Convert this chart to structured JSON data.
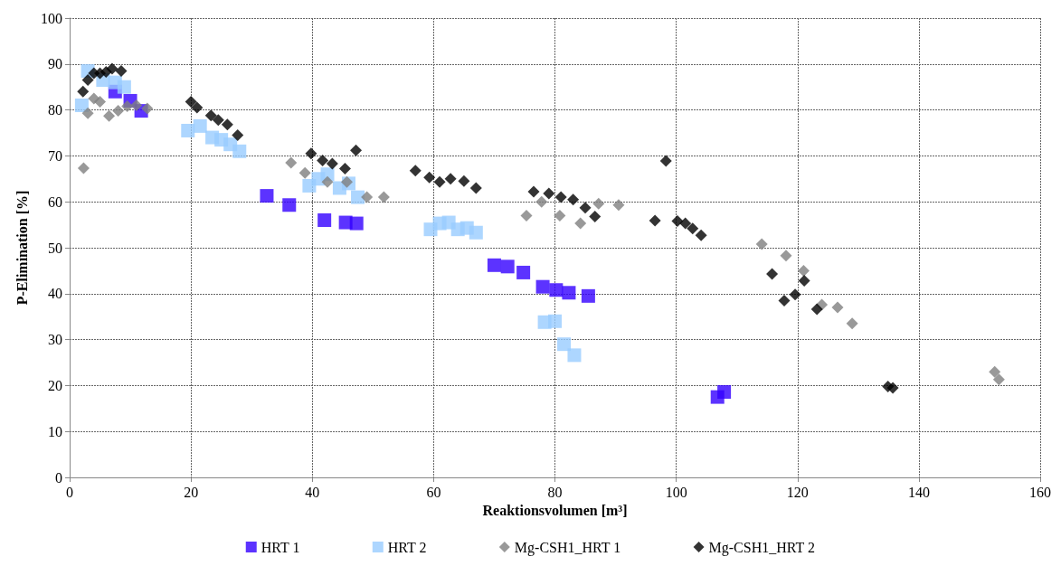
{
  "chart_data": {
    "type": "scatter",
    "xlabel": "Reaktionsvolumen [m³]",
    "ylabel": "P-Elimination [%]",
    "xlim": [
      0,
      160
    ],
    "xticks": [
      0,
      20,
      40,
      60,
      80,
      100,
      120,
      140,
      160
    ],
    "ylim": [
      0,
      100
    ],
    "yticks": [
      0,
      10,
      20,
      30,
      40,
      50,
      60,
      70,
      80,
      90,
      100
    ],
    "grid": true,
    "legend": "bottom",
    "series": [
      {
        "name": "HRT 1",
        "color": "#3300ff",
        "marker": "square",
        "x": [
          7.5,
          10,
          11.8,
          32.5,
          36.2,
          42,
          45.5,
          47.3,
          70,
          72.2,
          74.8,
          78,
          80.2,
          82.3,
          85.5,
          106.8,
          107.9
        ],
        "values": [
          84,
          82,
          79.8,
          61.3,
          59.3,
          56,
          55.5,
          55.3,
          46.2,
          45.9,
          44.6,
          41.5,
          40.8,
          40.2,
          39.5,
          17.5,
          18.6
        ]
      },
      {
        "name": "HRT 2",
        "color": "#99ccff",
        "marker": "square",
        "x": [
          2,
          3,
          5.5,
          7.5,
          9,
          19.5,
          21.5,
          23.5,
          25,
          26.5,
          28,
          39.5,
          41,
          42.5,
          44.5,
          46,
          47.5,
          59.5,
          61,
          62.5,
          64,
          65.5,
          67,
          78.3,
          80,
          81.5,
          83.2
        ],
        "values": [
          81,
          88.5,
          86.5,
          86,
          85,
          75.5,
          76.5,
          74,
          73.5,
          72.5,
          71,
          63.5,
          65,
          66,
          63,
          64,
          61,
          54,
          55.3,
          55.5,
          54,
          54.3,
          53.3,
          33.8,
          34,
          29,
          26.6
        ]
      },
      {
        "name": "Mg-CSH1_HRT 1",
        "color": "#808080",
        "marker": "diamond",
        "x": [
          2.3,
          3,
          4,
          5,
          6.5,
          8,
          9.5,
          11,
          12.8,
          36.5,
          38.8,
          42.5,
          45.7,
          49,
          51.8,
          75.3,
          77.8,
          80.8,
          84.2,
          87.2,
          90.5,
          114.1,
          118.1,
          121,
          124,
          126.6,
          129,
          152.5,
          153.2
        ],
        "values": [
          67.3,
          79.3,
          82.5,
          81.8,
          78.7,
          79.8,
          80.8,
          81,
          80.3,
          68.5,
          66.3,
          64.3,
          64.3,
          61,
          61,
          57,
          60,
          57,
          55.3,
          59.6,
          59.3,
          50.8,
          48.3,
          45,
          37.6,
          37,
          33.5,
          23,
          21.3
        ]
      },
      {
        "name": "Mg-CSH1_HRT 2",
        "color": "#000000",
        "marker": "diamond",
        "x": [
          2.2,
          3,
          4,
          5,
          6,
          7,
          8.5,
          20,
          21,
          23.3,
          24.5,
          26,
          27.7,
          39.8,
          41.7,
          43.3,
          45.4,
          47.2,
          57,
          59.3,
          61,
          62.8,
          65,
          67,
          76.5,
          79,
          81,
          83,
          85,
          86.6,
          96.5,
          98.3,
          100.2,
          101.5,
          102.7,
          104.1,
          115.8,
          117.8,
          119.6,
          121.1,
          123.2,
          134.9,
          135.7
        ],
        "values": [
          84,
          86.5,
          88,
          88,
          88.3,
          89,
          88.5,
          81.8,
          80.5,
          78.8,
          77.8,
          76.8,
          74.5,
          70.5,
          69,
          68.3,
          67.2,
          71.2,
          66.8,
          65.3,
          64.3,
          65,
          64.5,
          63,
          62.2,
          61.8,
          61,
          60.5,
          58.7,
          56.8,
          55.9,
          68.9,
          55.8,
          55.3,
          54.2,
          52.7,
          44.3,
          38.5,
          39.8,
          42.8,
          36.6,
          19.8,
          19.5
        ]
      }
    ]
  }
}
